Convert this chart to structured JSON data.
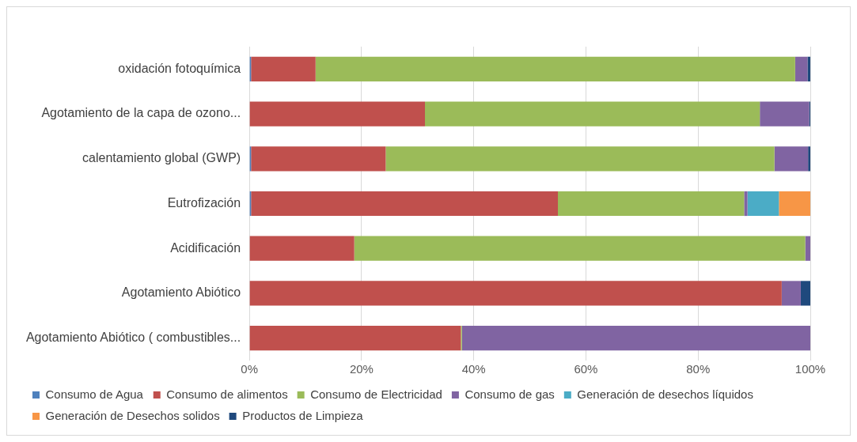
{
  "chart_data": {
    "type": "bar",
    "orientation": "horizontal",
    "stacked": true,
    "categories": [
      "oxidación fotoquímica",
      "Agotamiento de la capa de ozono...",
      "calentamiento global (GWP)",
      "Eutrofización",
      "Acidificación",
      "Agotamiento Abiótico",
      "Agotamiento Abiótico ( combustibles..."
    ],
    "series": [
      {
        "name": "Consumo de Agua",
        "color": "#4f81bd",
        "values": [
          0.3,
          0,
          0.3,
          0.3,
          0,
          0,
          0
        ]
      },
      {
        "name": "Consumo de alimentos",
        "color": "#c0504d",
        "values": [
          11.5,
          31.3,
          24,
          54.7,
          18.7,
          94.9,
          37.7
        ]
      },
      {
        "name": "Consumo de Electricidad",
        "color": "#9bbb59",
        "values": [
          85.5,
          59.7,
          69.3,
          33.2,
          80.4,
          0,
          0.2
        ]
      },
      {
        "name": "Consumo de gas",
        "color": "#8064a2",
        "values": [
          2.2,
          8.8,
          6,
          0.6,
          0.9,
          3.4,
          62.1
        ]
      },
      {
        "name": "Generación de desechos líquidos",
        "color": "#4bacc6",
        "values": [
          0,
          0,
          0,
          5.6,
          0,
          0,
          0
        ]
      },
      {
        "name": "Generación de Desechos solidos",
        "color": "#f79646",
        "values": [
          0,
          0,
          0,
          5.6,
          0,
          0,
          0
        ]
      },
      {
        "name": "Productos de Limpieza",
        "color": "#1f497d",
        "values": [
          0.5,
          0.2,
          0.4,
          0,
          0,
          1.7,
          0
        ]
      }
    ],
    "xlim": [
      0,
      100
    ],
    "xticks": [
      {
        "value": 0,
        "label": "0%"
      },
      {
        "value": 20,
        "label": "20%"
      },
      {
        "value": 40,
        "label": "40%"
      },
      {
        "value": 60,
        "label": "60%"
      },
      {
        "value": 80,
        "label": "80%"
      },
      {
        "value": 100,
        "label": "100%"
      }
    ],
    "grid": "x",
    "legend": "bottom"
  }
}
